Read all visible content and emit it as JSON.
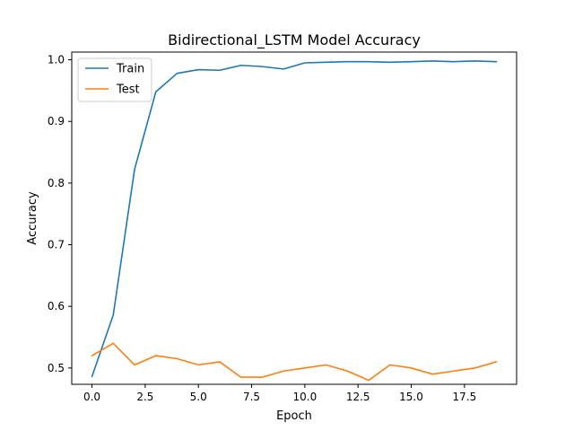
{
  "chart_data": {
    "type": "line",
    "title": "Bidirectional_LSTM Model Accuracy",
    "xlabel": "Epoch",
    "ylabel": "Accuracy",
    "xlim": [
      -0.95,
      19.95
    ],
    "ylim": [
      0.4735,
      1.0125
    ],
    "xticks": [
      0,
      2.5,
      5,
      7.5,
      10,
      12.5,
      15,
      17.5
    ],
    "xtick_labels": [
      "0.0",
      "2.5",
      "5.0",
      "7.5",
      "10.0",
      "12.5",
      "15.0",
      "17.5"
    ],
    "yticks": [
      0.5,
      0.6,
      0.7,
      0.8,
      0.9,
      1.0
    ],
    "ytick_labels": [
      "0.5",
      "0.6",
      "0.7",
      "0.8",
      "0.9",
      "1.0"
    ],
    "grid": false,
    "legend_position": "top-left",
    "x": [
      0,
      1,
      2,
      3,
      4,
      5,
      6,
      7,
      8,
      9,
      10,
      11,
      12,
      13,
      14,
      15,
      16,
      17,
      18,
      19
    ],
    "series": [
      {
        "name": "Train",
        "color": "#1f77b4",
        "values": [
          0.486,
          0.586,
          0.822,
          0.948,
          0.978,
          0.984,
          0.983,
          0.991,
          0.989,
          0.985,
          0.995,
          0.996,
          0.997,
          0.997,
          0.996,
          0.997,
          0.998,
          0.997,
          0.998,
          0.997
        ]
      },
      {
        "name": "Test",
        "color": "#ff7f0e",
        "values": [
          0.52,
          0.54,
          0.505,
          0.52,
          0.515,
          0.505,
          0.51,
          0.485,
          0.485,
          0.495,
          0.5,
          0.505,
          0.495,
          0.48,
          0.505,
          0.5,
          0.49,
          0.495,
          0.5,
          0.51
        ]
      }
    ]
  }
}
